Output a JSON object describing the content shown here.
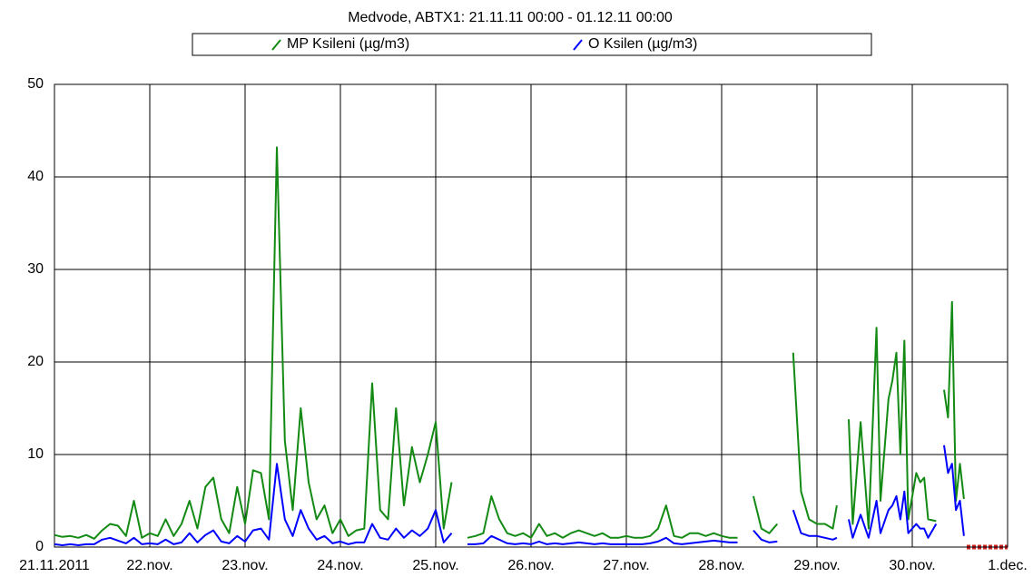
{
  "chart_data": {
    "type": "line",
    "title": "Medvode, ABTX1: 21.11.11 00:00 - 01.12.11 00:00",
    "x": [
      0,
      2,
      4,
      6,
      8,
      10,
      12,
      14,
      16,
      18,
      20,
      22,
      24,
      26,
      28,
      30,
      32,
      34,
      36,
      38,
      40,
      42,
      44,
      46,
      48,
      50,
      52,
      54,
      56,
      58,
      60,
      62,
      64,
      66,
      68,
      70,
      72,
      74,
      76,
      78,
      80,
      82,
      84,
      86,
      88,
      90,
      92,
      94,
      96,
      98,
      100,
      102,
      104,
      106,
      108,
      110,
      112,
      114,
      116,
      118,
      120,
      122,
      124,
      126,
      128,
      130,
      132,
      134,
      136,
      138,
      140,
      142,
      144,
      146,
      148,
      150,
      152,
      154,
      156,
      158,
      160,
      162,
      164,
      166,
      168,
      170,
      172,
      174,
      176,
      178,
      180,
      182,
      184,
      186,
      188,
      190,
      192,
      194,
      196,
      197,
      199,
      200,
      201,
      203,
      205,
      207,
      208,
      210,
      211,
      212,
      213,
      214,
      215,
      217,
      218,
      219,
      220,
      222,
      223,
      224,
      225,
      226,
      227,
      228,
      229
    ],
    "series": [
      {
        "name": "MP Ksileni (µg/m3)",
        "color": "#138a13",
        "values": [
          1.3,
          1.1,
          1.2,
          1.0,
          1.3,
          0.9,
          1.8,
          2.5,
          2.3,
          1.2,
          5.0,
          1.0,
          1.5,
          1.2,
          3.0,
          1.2,
          2.5,
          5.0,
          2.0,
          6.5,
          7.5,
          3.0,
          1.5,
          6.5,
          2.5,
          8.3,
          8.0,
          3.0,
          43.2,
          11.5,
          4.0,
          15.0,
          7.0,
          3.0,
          4.5,
          1.5,
          3.0,
          1.2,
          1.8,
          2.0,
          17.7,
          4.0,
          3.0,
          15.0,
          4.5,
          10.8,
          7.0,
          10.0,
          13.5,
          2.0,
          7.0,
          null,
          1.0,
          1.2,
          1.5,
          5.5,
          3.0,
          1.5,
          1.2,
          1.5,
          1.0,
          2.5,
          1.2,
          1.5,
          1.0,
          1.5,
          1.8,
          1.5,
          1.2,
          1.5,
          1.0,
          1.0,
          1.2,
          1.0,
          1.0,
          1.2,
          2.0,
          4.5,
          1.2,
          1.0,
          1.5,
          1.5,
          1.2,
          1.5,
          1.2,
          1.0,
          1.0,
          null,
          5.5,
          2.0,
          1.5,
          2.5,
          null,
          21.0,
          6.0,
          3.0,
          2.5,
          2.5,
          2.0,
          4.5,
          null,
          13.8,
          2.5,
          13.5,
          2.0,
          23.7,
          5.0,
          16.0,
          18.0,
          21.0,
          10.0,
          22.3,
          3.0,
          8.0,
          7.0,
          7.5,
          3.0,
          2.8,
          null,
          17.0,
          14.0,
          26.5,
          5.0,
          9.0,
          5.2
        ]
      },
      {
        "name": "O Ksilen (µg/m3)",
        "color": "#0000ff",
        "values": [
          0.3,
          0.2,
          0.3,
          0.2,
          0.3,
          0.3,
          0.8,
          1.0,
          0.7,
          0.4,
          1.0,
          0.3,
          0.4,
          0.3,
          0.8,
          0.3,
          0.5,
          1.5,
          0.5,
          1.3,
          1.8,
          0.6,
          0.4,
          1.2,
          0.6,
          1.8,
          2.0,
          0.8,
          9.0,
          3.0,
          1.2,
          4.0,
          2.0,
          0.8,
          1.2,
          0.4,
          0.6,
          0.3,
          0.5,
          0.5,
          2.5,
          1.0,
          0.8,
          2.0,
          1.0,
          1.8,
          1.2,
          2.0,
          4.0,
          0.5,
          1.5,
          null,
          0.3,
          0.3,
          0.4,
          1.2,
          0.8,
          0.4,
          0.3,
          0.4,
          0.3,
          0.6,
          0.3,
          0.4,
          0.3,
          0.4,
          0.5,
          0.4,
          0.3,
          0.4,
          0.3,
          0.3,
          0.3,
          0.3,
          0.3,
          0.4,
          0.6,
          1.0,
          0.4,
          0.3,
          0.4,
          0.5,
          0.6,
          0.7,
          0.6,
          0.5,
          0.5,
          null,
          1.8,
          0.8,
          0.5,
          0.6,
          null,
          4.0,
          1.5,
          1.2,
          1.2,
          1.0,
          0.8,
          1.0,
          null,
          3.0,
          1.0,
          3.5,
          1.0,
          5.0,
          1.5,
          4.0,
          4.5,
          5.5,
          3.0,
          6.0,
          1.5,
          2.5,
          2.0,
          2.0,
          1.0,
          2.5,
          null,
          11.0,
          8.0,
          9.0,
          4.0,
          5.0,
          1.2
        ]
      }
    ],
    "xlim": [
      0,
      240
    ],
    "xticks": [
      {
        "value": 0,
        "label": "21.11.2011"
      },
      {
        "value": 24,
        "label": "22.nov."
      },
      {
        "value": 48,
        "label": "23.nov."
      },
      {
        "value": 72,
        "label": "24.nov."
      },
      {
        "value": 96,
        "label": "25.nov."
      },
      {
        "value": 120,
        "label": "26.nov."
      },
      {
        "value": 144,
        "label": "27.nov."
      },
      {
        "value": 168,
        "label": "28.nov."
      },
      {
        "value": 192,
        "label": "29.nov."
      },
      {
        "value": 216,
        "label": "30.nov."
      },
      {
        "value": 240,
        "label": "1.dec."
      }
    ],
    "ylim": [
      0,
      50
    ],
    "yticks": [
      0,
      10,
      20,
      30,
      40,
      50
    ],
    "grid": true
  }
}
